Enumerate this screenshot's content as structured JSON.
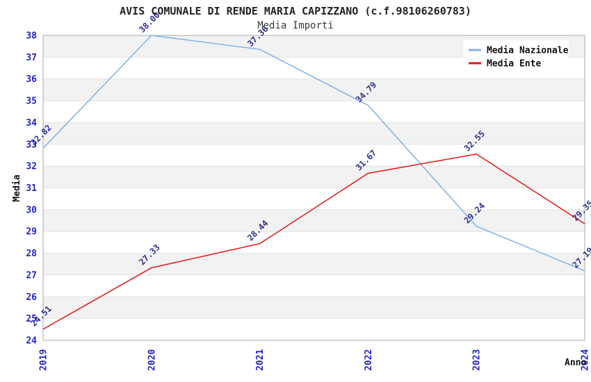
{
  "page": {
    "background": "#ffffff"
  },
  "chart_data": {
    "type": "line",
    "title": "AVIS COMUNALE DI RENDE MARIA CAPIZZANO (c.f.98106260783)",
    "subtitle": "Media Importi",
    "xlabel": "Anno",
    "ylabel": "Media",
    "x": [
      2019,
      2020,
      2021,
      2022,
      2023,
      2024
    ],
    "series": [
      {
        "name": "Media Nazionale",
        "color": "#7fb2e5",
        "values": [
          32.82,
          38.0,
          37.36,
          34.79,
          29.24,
          27.19
        ]
      },
      {
        "name": "Media Ente",
        "color": "#e81414",
        "values": [
          24.51,
          27.33,
          28.44,
          31.67,
          32.55,
          29.35
        ]
      }
    ],
    "ylim": [
      24,
      38
    ],
    "ytick_step": 1,
    "grid": true,
    "point_labels_decimals": 2,
    "legend_position": "top-right"
  },
  "colors": {
    "tick_label": "#2222cc",
    "point_label": "#2f2f8f",
    "band_stripe": "#f2f2f2",
    "grid_line": "#e3e3e3",
    "plot_border": "#a8a8a8",
    "title_text": "#222222",
    "subtitle_text": "#3c3c3c",
    "axis_label_text": "#111111",
    "legend_text": "#111111",
    "legend_background": "#ffffff"
  }
}
